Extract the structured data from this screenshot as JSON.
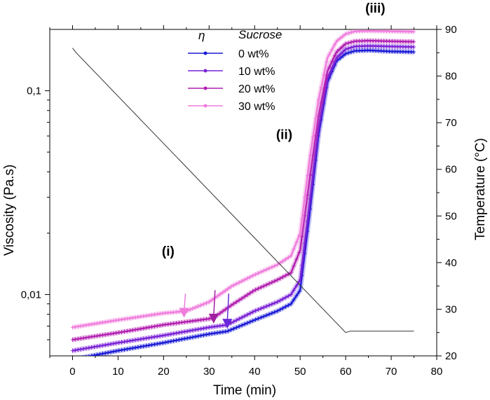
{
  "chart_data": {
    "type": "line",
    "title": "",
    "xlabel": "Time (min)",
    "ylabel": "Viscosity (Pa.s)",
    "y2label": "Temperature (°C)",
    "xlim": [
      -5,
      80
    ],
    "ylim": [
      0.005,
      0.2
    ],
    "y2lim": [
      20,
      90
    ],
    "yscale": "log",
    "x_ticks": [
      "0",
      "10",
      "20",
      "30",
      "40",
      "50",
      "60",
      "70",
      "80"
    ],
    "y_ticks": [
      "0,01",
      "0,1"
    ],
    "y2_ticks": [
      "20",
      "30",
      "40",
      "50",
      "60",
      "70",
      "80",
      "90"
    ],
    "legend": {
      "symbol_header": "η",
      "header": "Sucrose",
      "placement": "top-center"
    },
    "series": [
      {
        "name": "0 wt%",
        "color": "#1a1ad6",
        "x": [
          0,
          10,
          20,
          30,
          34,
          40,
          45,
          48,
          50,
          52,
          54,
          56,
          58,
          60,
          62,
          65,
          70,
          75
        ],
        "values": [
          0.0048,
          0.0053,
          0.0058,
          0.0064,
          0.0066,
          0.0075,
          0.0083,
          0.009,
          0.0105,
          0.024,
          0.06,
          0.11,
          0.14,
          0.152,
          0.157,
          0.158,
          0.156,
          0.155
        ]
      },
      {
        "name": "10 wt%",
        "color": "#7a22d6",
        "x": [
          0,
          10,
          20,
          30,
          34,
          40,
          45,
          48,
          50,
          52,
          54,
          56,
          58,
          60,
          62,
          65,
          70,
          75
        ],
        "values": [
          0.0053,
          0.0058,
          0.0063,
          0.0069,
          0.0071,
          0.0083,
          0.0092,
          0.01,
          0.0118,
          0.027,
          0.065,
          0.115,
          0.145,
          0.16,
          0.165,
          0.166,
          0.165,
          0.164
        ]
      },
      {
        "name": "20 wt%",
        "color": "#b21fb0",
        "x": [
          0,
          10,
          20,
          30,
          31,
          35,
          40,
          45,
          48,
          50,
          52,
          54,
          56,
          58,
          60,
          62,
          65,
          70,
          75
        ],
        "values": [
          0.006,
          0.0065,
          0.0071,
          0.0076,
          0.0077,
          0.0089,
          0.0105,
          0.0118,
          0.0128,
          0.0165,
          0.036,
          0.075,
          0.125,
          0.155,
          0.17,
          0.175,
          0.176,
          0.175,
          0.174
        ]
      },
      {
        "name": "30 wt%",
        "color": "#f07cdc",
        "x": [
          0,
          10,
          20,
          25,
          30,
          35,
          40,
          45,
          48,
          50,
          52,
          54,
          56,
          58,
          60,
          62,
          65,
          70,
          75
        ],
        "values": [
          0.0069,
          0.0075,
          0.0081,
          0.0083,
          0.0092,
          0.011,
          0.0125,
          0.014,
          0.0155,
          0.02,
          0.045,
          0.09,
          0.145,
          0.175,
          0.19,
          0.196,
          0.197,
          0.196,
          0.195
        ]
      }
    ],
    "temperature": {
      "name": "Temperature",
      "axis": "right",
      "color": "#333333",
      "x": [
        0,
        0.8,
        60,
        61,
        75
      ],
      "values": [
        86,
        85,
        25,
        25.3,
        25.3
      ]
    },
    "annotations": [
      {
        "text": "(i)",
        "x": 21,
        "y": 0.0155
      },
      {
        "text": "(ii)",
        "x": 46.5,
        "y": 0.058
      },
      {
        "text": "(iii)",
        "x": 66.5,
        "y": 0.27
      }
    ],
    "arrows": [
      {
        "color": "#f07cdc",
        "x": 24.5,
        "y_from": 0.0101,
        "y_to": 0.0077
      },
      {
        "color": "#a01fa0",
        "x": 31,
        "y_from": 0.0105,
        "y_to": 0.0072
      },
      {
        "color": "#6a28d8",
        "x": 34,
        "y_from": 0.0101,
        "y_to": 0.0068
      }
    ]
  }
}
